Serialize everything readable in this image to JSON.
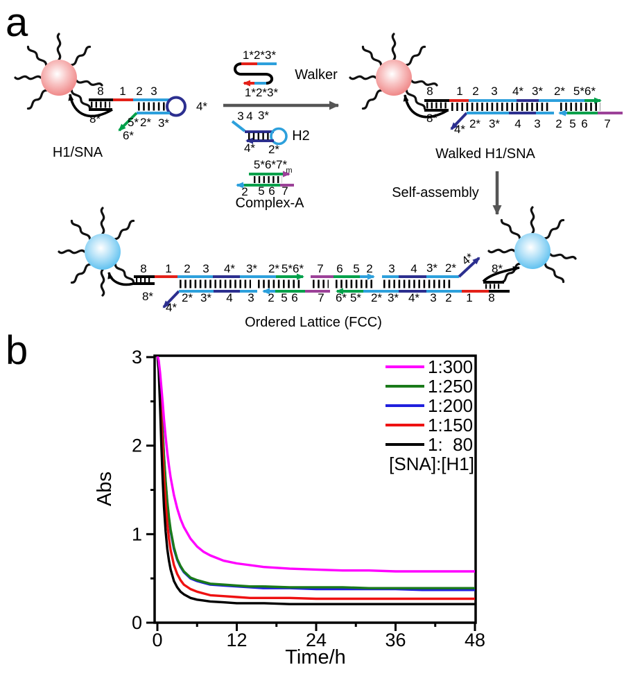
{
  "colors": {
    "strand_blue": "#2da0dc",
    "strand_navy": "#2c2f8f",
    "strand_red": "#e32119",
    "strand_green": "#00a04a",
    "strand_purple": "#9c4198",
    "strand_black": "#000000",
    "reaction_arrow_gray": "#555555",
    "sphere_pink": "#ee7f7f",
    "sphere_blue": "#54bdef"
  },
  "panel_a": {
    "panel_label": "a",
    "h1_sna": {
      "title": "H1/SNA",
      "top_labels": [
        "8",
        "1",
        "2",
        "3"
      ],
      "loop_label": "4*",
      "bottom_labels": [
        "8*",
        "5*",
        "2*",
        "3*",
        "6*"
      ]
    },
    "walker": {
      "title": "Walker",
      "top_label": "1*2*3*",
      "bottom_label": "1*2*3*"
    },
    "h2": {
      "title": "H2",
      "top_labels": [
        "3",
        "4",
        "3*"
      ],
      "bottom_labels": [
        "4*",
        "2*"
      ]
    },
    "complex_a": {
      "title": "Complex-A",
      "top_label": "5*6*7*",
      "top_subscript": "m",
      "bottom_labels": [
        "2",
        "5",
        "6",
        "7"
      ]
    },
    "walked": {
      "title": "Walked H1/SNA",
      "top_labels": [
        "8",
        "1",
        "2",
        "3",
        "4*",
        "3*",
        "2*",
        "5*6*"
      ],
      "bottom_labels": [
        "8*",
        "4*",
        "2*",
        "3*",
        "4",
        "3",
        "2",
        "5",
        "6",
        "7"
      ]
    },
    "self_assembly_label": "Self-assembly",
    "lattice": {
      "title": "Ordered Lattice (FCC)",
      "top_labels": [
        "8",
        "1",
        "2",
        "3",
        "4*",
        "3*",
        "2*",
        "5*6*",
        "7",
        "6",
        "5",
        "2",
        "3",
        "4",
        "3*",
        "2*",
        "4*",
        "8*"
      ],
      "bottom_labels": [
        "8*",
        "4*",
        "2*",
        "3*",
        "4",
        "3",
        "2",
        "5",
        "6",
        "7",
        "6*",
        "5*",
        "2*",
        "3*",
        "4*",
        "3",
        "2",
        "1",
        "8"
      ]
    }
  },
  "panel_b": {
    "panel_label": "b"
  },
  "chart_data": {
    "type": "line",
    "title": "",
    "xlabel": "Time/h",
    "ylabel": "Abs",
    "xlim": [
      0,
      48
    ],
    "ylim": [
      0,
      3
    ],
    "xticks": [
      0,
      12,
      24,
      36,
      48
    ],
    "yticks": [
      0,
      1,
      2,
      3
    ],
    "x_minor_step": 6,
    "y_minor_step": 0.5,
    "grid": false,
    "legend_position": "top-right-inside",
    "legend_note": "[SNA]:[H1]",
    "x": [
      0,
      0.2,
      0.4,
      0.6,
      0.8,
      1,
      1.25,
      1.5,
      1.75,
      2,
      2.5,
      3,
      3.5,
      4,
      5,
      6,
      7,
      8,
      10,
      12,
      14,
      16,
      20,
      24,
      28,
      32,
      36,
      40,
      44,
      48
    ],
    "series": [
      {
        "name": "1:300",
        "color": "#ff00ff",
        "values": [
          3.02,
          2.96,
          2.83,
          2.66,
          2.49,
          2.3,
          2.1,
          1.92,
          1.77,
          1.64,
          1.44,
          1.29,
          1.17,
          1.08,
          0.95,
          0.86,
          0.8,
          0.76,
          0.7,
          0.67,
          0.65,
          0.63,
          0.61,
          0.6,
          0.59,
          0.59,
          0.58,
          0.58,
          0.58,
          0.58
        ]
      },
      {
        "name": "1:250",
        "color": "#1a7a1a",
        "values": [
          3.02,
          2.94,
          2.74,
          2.46,
          2.17,
          1.89,
          1.6,
          1.37,
          1.19,
          1.05,
          0.85,
          0.72,
          0.64,
          0.58,
          0.51,
          0.48,
          0.46,
          0.44,
          0.43,
          0.42,
          0.41,
          0.41,
          0.4,
          0.4,
          0.4,
          0.39,
          0.39,
          0.39,
          0.39,
          0.39
        ]
      },
      {
        "name": "1:200",
        "color": "#2020dd",
        "values": [
          3.02,
          2.94,
          2.73,
          2.45,
          2.16,
          1.88,
          1.58,
          1.35,
          1.17,
          1.03,
          0.83,
          0.71,
          0.63,
          0.57,
          0.5,
          0.47,
          0.45,
          0.43,
          0.42,
          0.41,
          0.4,
          0.39,
          0.39,
          0.38,
          0.38,
          0.38,
          0.38,
          0.37,
          0.37,
          0.37
        ]
      },
      {
        "name": "1:150",
        "color": "#ee1111",
        "values": [
          3.02,
          2.91,
          2.64,
          2.29,
          1.95,
          1.65,
          1.34,
          1.12,
          0.95,
          0.82,
          0.65,
          0.55,
          0.48,
          0.43,
          0.38,
          0.35,
          0.33,
          0.31,
          0.3,
          0.29,
          0.28,
          0.28,
          0.28,
          0.27,
          0.27,
          0.27,
          0.27,
          0.27,
          0.27,
          0.27
        ]
      },
      {
        "name": "1:  80",
        "color": "#000000",
        "values": [
          3.02,
          2.85,
          2.46,
          2.01,
          1.62,
          1.31,
          1.03,
          0.83,
          0.7,
          0.6,
          0.47,
          0.4,
          0.35,
          0.32,
          0.28,
          0.26,
          0.25,
          0.24,
          0.23,
          0.22,
          0.22,
          0.22,
          0.21,
          0.21,
          0.21,
          0.21,
          0.21,
          0.21,
          0.21,
          0.21
        ]
      }
    ]
  }
}
